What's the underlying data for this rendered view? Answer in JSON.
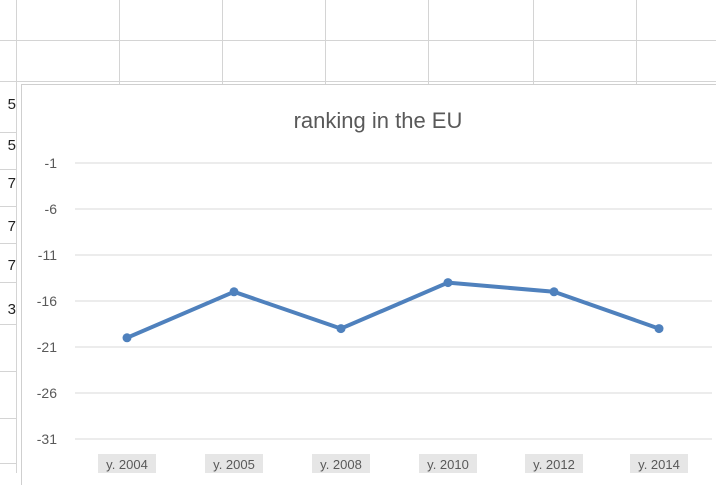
{
  "sheet": {
    "visible_cell_fragments": [
      "5",
      "5",
      "7",
      "7",
      "7",
      "3"
    ]
  },
  "chart_data": {
    "type": "line",
    "title": "ranking in the EU",
    "categories": [
      "y. 2004",
      "y. 2005",
      "y. 2008",
      "y. 2010",
      "y. 2012",
      "y. 2014"
    ],
    "series": [
      {
        "values": [
          -20,
          -15,
          -19,
          -14,
          -15,
          -19
        ],
        "color": "#4f81bd"
      }
    ],
    "ylim": [
      -31,
      -1
    ],
    "yticks": [
      -1,
      -6,
      -11,
      -16,
      -21,
      -26,
      -31
    ],
    "ytick_labels": [
      "-1",
      "-6",
      "-11",
      "-16",
      "-21",
      "-26",
      "-31"
    ],
    "grid": true,
    "legend": "none"
  }
}
